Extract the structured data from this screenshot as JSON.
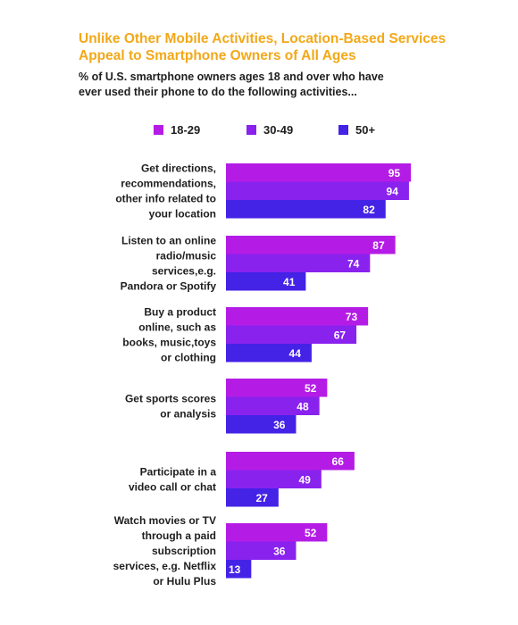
{
  "title_line1": "Unlike Other Mobile Activities, Location-Based Services",
  "title_line2": "Appeal to Smartphone Owners of All Ages",
  "subtitle_line1": "% of U.S. smartphone owners ages 18 and over who have",
  "subtitle_line2": "ever used their phone to do the following activities...",
  "colors": {
    "18-29": "#b41ce6",
    "30-49": "#8a22ee",
    "50+": "#4422e6",
    "title": "#f2a818"
  },
  "chart_data": {
    "type": "bar",
    "orientation": "horizontal",
    "title": "Unlike Other Mobile Activities, Location-Based Services Appeal to Smartphone Owners of All Ages",
    "subtitle": "% of U.S. smartphone owners ages 18 and over who have ever used their phone to do the following activities...",
    "legend_position": "top",
    "grid": false,
    "categories": [
      [
        "Get directions,",
        "recommendations,",
        "other info related to",
        "your location"
      ],
      [
        "Listen to an online",
        "radio/music",
        "services,e.g.",
        "Pandora or Spotify"
      ],
      [
        "Buy a product",
        "online, such as",
        "books, music,toys",
        "or clothing"
      ],
      [
        "Get sports scores",
        "or analysis"
      ],
      [
        "Participate in a",
        "video call or chat"
      ],
      [
        "Watch movies or TV",
        "through a paid",
        "subscription",
        "services, e.g. Netflix",
        "or Hulu Plus"
      ]
    ],
    "series": [
      {
        "name": "18-29",
        "values": [
          95,
          87,
          73,
          52,
          66,
          52
        ]
      },
      {
        "name": "30-49",
        "values": [
          94,
          74,
          67,
          48,
          49,
          36
        ]
      },
      {
        "name": "50+",
        "values": [
          82,
          41,
          44,
          36,
          27,
          13
        ]
      }
    ]
  }
}
